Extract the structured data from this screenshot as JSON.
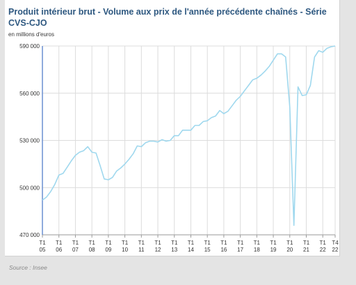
{
  "chart_data": {
    "type": "line",
    "title": "Produit intérieur brut - Volume aux prix de l'année précédente chaînés - Série CVS-CJO",
    "ylabel": "en millions d'euros",
    "xlabel": "",
    "ylim": [
      470000,
      590000
    ],
    "yticks": [
      470000,
      500000,
      530000,
      560000,
      590000
    ],
    "ytick_labels": [
      "470 000",
      "500 000",
      "530 000",
      "560 000",
      "590 000"
    ],
    "xtick_labels": [
      {
        "quarter": "2005-T1",
        "top": "T1",
        "bottom": "05"
      },
      {
        "quarter": "2006-T1",
        "top": "T1",
        "bottom": "06"
      },
      {
        "quarter": "2007-T1",
        "top": "T1",
        "bottom": "07"
      },
      {
        "quarter": "2008-T1",
        "top": "T1",
        "bottom": "08"
      },
      {
        "quarter": "2009-T1",
        "top": "T1",
        "bottom": "09"
      },
      {
        "quarter": "2010-T1",
        "top": "T1",
        "bottom": "10"
      },
      {
        "quarter": "2011-T1",
        "top": "T1",
        "bottom": "11"
      },
      {
        "quarter": "2012-T1",
        "top": "T1",
        "bottom": "12"
      },
      {
        "quarter": "2013-T1",
        "top": "T1",
        "bottom": "13"
      },
      {
        "quarter": "2014-T1",
        "top": "T1",
        "bottom": "14"
      },
      {
        "quarter": "2015-T1",
        "top": "T1",
        "bottom": "15"
      },
      {
        "quarter": "2016-T1",
        "top": "T1",
        "bottom": "16"
      },
      {
        "quarter": "2017-T1",
        "top": "T1",
        "bottom": "17"
      },
      {
        "quarter": "2018-T1",
        "top": "T1",
        "bottom": "18"
      },
      {
        "quarter": "2019-T1",
        "top": "T1",
        "bottom": "19"
      },
      {
        "quarter": "2020-T1",
        "top": "T1",
        "bottom": "20"
      },
      {
        "quarter": "2021-T1",
        "top": "T1",
        "bottom": "21"
      },
      {
        "quarter": "2022-T1",
        "top": "T1",
        "bottom": "22"
      },
      {
        "quarter": "2022-T4",
        "top": "T4",
        "bottom": "22"
      }
    ],
    "grid": true,
    "line_color": "#9fd8ee",
    "series": [
      {
        "x": [
          "2005-T1",
          "2005-T2",
          "2005-T3",
          "2005-T4",
          "2006-T1",
          "2006-T2",
          "2006-T3",
          "2006-T4",
          "2007-T1",
          "2007-T2",
          "2007-T3",
          "2007-T4",
          "2008-T1",
          "2008-T2",
          "2008-T3",
          "2008-T4",
          "2009-T1",
          "2009-T2",
          "2009-T3",
          "2009-T4",
          "2010-T1",
          "2010-T2",
          "2010-T3",
          "2010-T4",
          "2011-T1",
          "2011-T2",
          "2011-T3",
          "2011-T4",
          "2012-T1",
          "2012-T2",
          "2012-T3",
          "2012-T4",
          "2013-T1",
          "2013-T2",
          "2013-T3",
          "2013-T4",
          "2014-T1",
          "2014-T2",
          "2014-T3",
          "2014-T4",
          "2015-T1",
          "2015-T2",
          "2015-T3",
          "2015-T4",
          "2016-T1",
          "2016-T2",
          "2016-T3",
          "2016-T4",
          "2017-T1",
          "2017-T2",
          "2017-T3",
          "2017-T4",
          "2018-T1",
          "2018-T2",
          "2018-T3",
          "2018-T4",
          "2019-T1",
          "2019-T2",
          "2019-T3",
          "2019-T4",
          "2020-T1",
          "2020-T2",
          "2020-T3",
          "2020-T4",
          "2021-T1",
          "2021-T2",
          "2021-T3",
          "2021-T4",
          "2022-T1",
          "2022-T2",
          "2022-T3",
          "2022-T4"
        ],
        "values": [
          492000,
          494000,
          497500,
          502000,
          508000,
          509000,
          513000,
          517000,
          520500,
          522500,
          523500,
          526000,
          522500,
          522000,
          514000,
          505500,
          505000,
          506500,
          510500,
          512500,
          515000,
          518000,
          521500,
          526500,
          526000,
          528500,
          529500,
          529500,
          529000,
          530500,
          529500,
          530000,
          533000,
          533000,
          536500,
          536500,
          536500,
          539500,
          539500,
          542000,
          542500,
          544500,
          545500,
          549000,
          547000,
          548500,
          552000,
          555500,
          558000,
          561500,
          565000,
          568500,
          569500,
          571500,
          574000,
          577000,
          581000,
          585000,
          585000,
          583000,
          551000,
          476000,
          564000,
          558500,
          559000,
          565000,
          583000,
          587000,
          586000,
          588500,
          589500,
          590000
        ]
      }
    ]
  },
  "source": "Source : Insee"
}
